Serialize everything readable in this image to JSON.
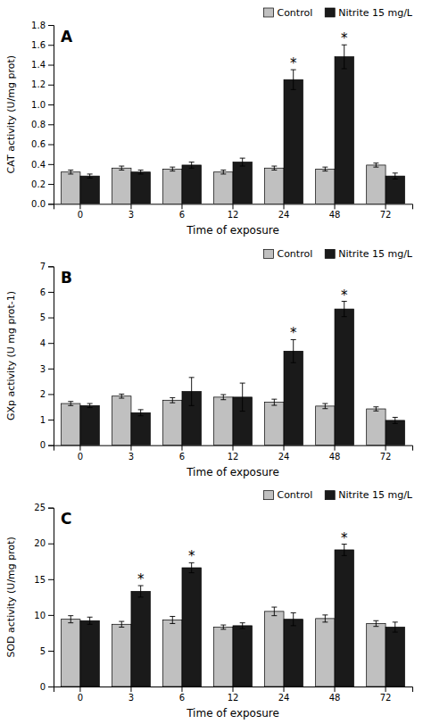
{
  "chart_data": [
    {
      "type": "bar",
      "title": "A",
      "xlabel": "Time of exposure",
      "ylabel": "CAT activity (U/mg prot)",
      "categories": [
        "0",
        "3",
        "6",
        "12",
        "24",
        "48",
        "72"
      ],
      "series": [
        {
          "name": "Control",
          "color": "#c0c0c0",
          "values": [
            0.32,
            0.36,
            0.35,
            0.32,
            0.36,
            0.35,
            0.39
          ],
          "errors": [
            0.02,
            0.02,
            0.02,
            0.02,
            0.02,
            0.02,
            0.02
          ]
        },
        {
          "name": "Nitrite 15 mg/L",
          "color": "#1a1a1a",
          "values": [
            0.28,
            0.32,
            0.39,
            0.42,
            1.25,
            1.48,
            0.28
          ],
          "errors": [
            0.02,
            0.02,
            0.03,
            0.04,
            0.1,
            0.12,
            0.03
          ]
        }
      ],
      "annotations": [
        {
          "text": "*",
          "category": "24",
          "series": "Nitrite 15 mg/L"
        },
        {
          "text": "*",
          "category": "48",
          "series": "Nitrite 15 mg/L"
        }
      ],
      "ylim": [
        0,
        1.8
      ],
      "yticks": [
        {
          "value": 0,
          "label": "0.0"
        },
        0.2,
        0.4,
        0.6,
        0.8,
        {
          "value": 1,
          "label": "1.0"
        },
        1.2,
        1.4,
        1.6,
        1.8
      ],
      "grid": false,
      "legend": "upper right"
    },
    {
      "type": "bar",
      "title": "B",
      "xlabel": "Time of exposure",
      "ylabel": "GXp activity (U mg prot-1)",
      "categories": [
        "0",
        "3",
        "6",
        "12",
        "24",
        "48",
        "72"
      ],
      "series": [
        {
          "name": "Control",
          "color": "#c0c0c0",
          "values": [
            1.63,
            1.92,
            1.76,
            1.88,
            1.68,
            1.53,
            1.42
          ],
          "errors": [
            0.08,
            0.08,
            0.1,
            0.1,
            0.12,
            0.1,
            0.08
          ]
        },
        {
          "name": "Nitrite 15 mg/L",
          "color": "#1a1a1a",
          "values": [
            1.55,
            1.27,
            2.1,
            1.88,
            3.68,
            5.33,
            0.97
          ],
          "errors": [
            0.08,
            0.12,
            0.55,
            0.55,
            0.45,
            0.3,
            0.12
          ]
        }
      ],
      "annotations": [
        {
          "text": "*",
          "category": "24",
          "series": "Nitrite 15 mg/L"
        },
        {
          "text": "*",
          "category": "48",
          "series": "Nitrite 15 mg/L"
        }
      ],
      "ylim": [
        0,
        7
      ],
      "yticks": [
        0,
        1,
        2,
        3,
        4,
        5,
        6,
        7
      ],
      "grid": false,
      "legend": "upper right"
    },
    {
      "type": "bar",
      "title": "C",
      "xlabel": "Time of exposure",
      "ylabel": "SOD activity (U/mg prot)",
      "categories": [
        "0",
        "3",
        "6",
        "12",
        "24",
        "48",
        "72"
      ],
      "series": [
        {
          "name": "Control",
          "color": "#c0c0c0",
          "values": [
            9.4,
            8.7,
            9.3,
            8.3,
            10.5,
            9.5,
            8.8
          ],
          "errors": [
            0.5,
            0.4,
            0.5,
            0.3,
            0.6,
            0.5,
            0.4
          ]
        },
        {
          "name": "Nitrite 15 mg/L",
          "color": "#1a1a1a",
          "values": [
            9.2,
            13.3,
            16.6,
            8.5,
            9.4,
            19.1,
            8.3
          ],
          "errors": [
            0.5,
            0.8,
            0.7,
            0.4,
            0.9,
            0.8,
            0.7
          ]
        }
      ],
      "annotations": [
        {
          "text": "*",
          "category": "3",
          "series": "Nitrite 15 mg/L"
        },
        {
          "text": "*",
          "category": "6",
          "series": "Nitrite 15 mg/L"
        },
        {
          "text": "*",
          "category": "48",
          "series": "Nitrite 15 mg/L"
        }
      ],
      "ylim": [
        0,
        25
      ],
      "yticks": [
        0,
        5,
        10,
        15,
        20,
        25
      ],
      "grid": false,
      "legend": "upper right"
    }
  ]
}
